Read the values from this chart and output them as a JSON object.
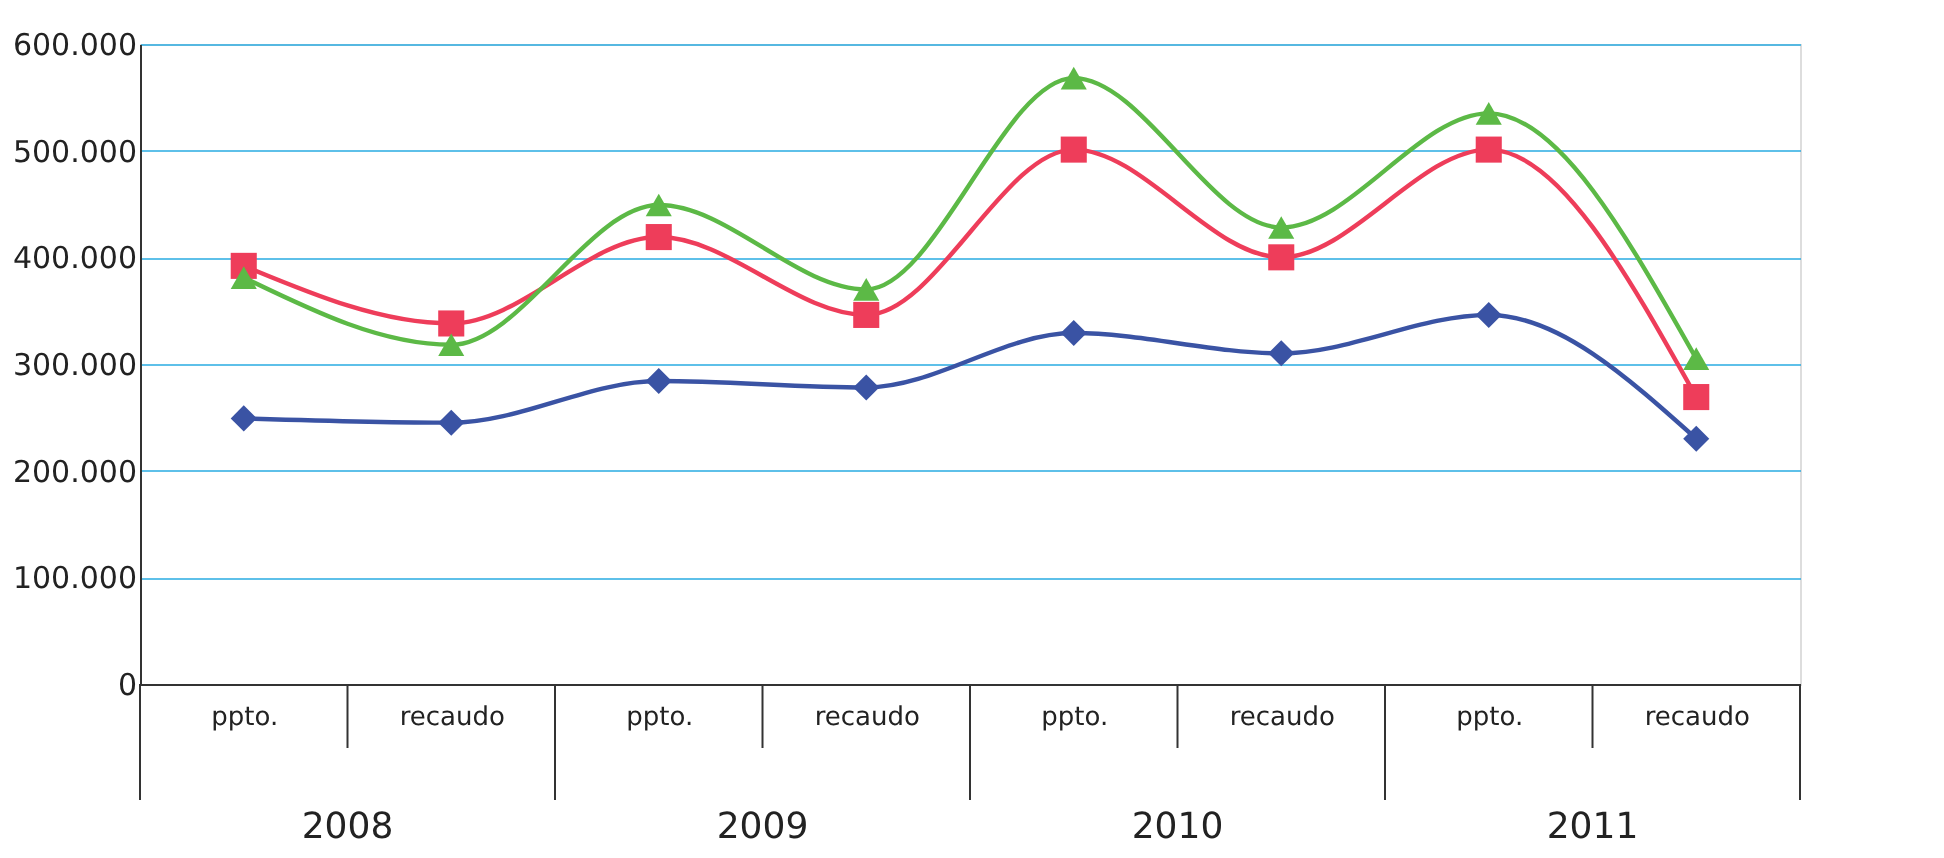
{
  "chart_data": {
    "type": "line",
    "categories": [
      "ppto.",
      "recaudo",
      "ppto.",
      "recaudo",
      "ppto.",
      "recaudo",
      "ppto.",
      "recaudo"
    ],
    "series": [
      {
        "color": "#3a53a4",
        "marker": "diamond",
        "values": [
          249000,
          245000,
          284000,
          278000,
          329000,
          310000,
          346000,
          230000
        ]
      },
      {
        "color": "#ee3d5a",
        "marker": "square",
        "values": [
          392000,
          338000,
          419000,
          346000,
          501000,
          400000,
          501000,
          269000
        ]
      },
      {
        "color": "#5cb946",
        "marker": "triangle",
        "values": [
          381000,
          318000,
          449000,
          370000,
          568000,
          428000,
          535000,
          305000
        ]
      }
    ],
    "ylim": [
      0,
      600000
    ],
    "yticks": [
      {
        "value": 0,
        "label": "0"
      },
      {
        "value": 100000,
        "label": "100.000"
      },
      {
        "value": 200000,
        "label": "200.000"
      },
      {
        "value": 300000,
        "label": "300.000"
      },
      {
        "value": 400000,
        "label": "400.000"
      },
      {
        "value": 500000,
        "label": "500.000"
      },
      {
        "value": 600000,
        "label": "600.000"
      }
    ],
    "annotations": [
      "2008",
      "2009",
      "2010",
      "2011"
    ],
    "grid": "y",
    "line_style": "solid"
  }
}
